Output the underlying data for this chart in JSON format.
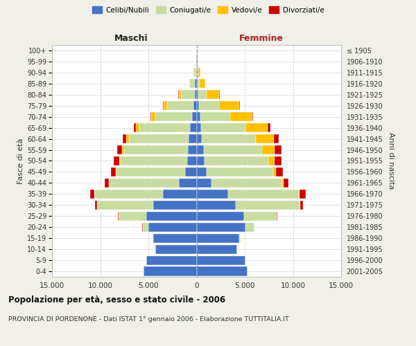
{
  "age_groups": [
    "0-4",
    "5-9",
    "10-14",
    "15-19",
    "20-24",
    "25-29",
    "30-34",
    "35-39",
    "40-44",
    "45-49",
    "50-54",
    "55-59",
    "60-64",
    "65-69",
    "70-74",
    "75-79",
    "80-84",
    "85-89",
    "90-94",
    "95-99",
    "100+"
  ],
  "birth_years": [
    "2001-2005",
    "1996-2000",
    "1991-1995",
    "1986-1990",
    "1981-1985",
    "1976-1980",
    "1971-1975",
    "1966-1970",
    "1961-1965",
    "1956-1960",
    "1951-1955",
    "1946-1950",
    "1941-1945",
    "1936-1940",
    "1931-1935",
    "1926-1930",
    "1921-1925",
    "1916-1920",
    "1911-1915",
    "1906-1910",
    "≤ 1905"
  ],
  "maschi": {
    "celibi": [
      5500,
      5200,
      4300,
      4500,
      5000,
      5200,
      4500,
      3500,
      1800,
      1200,
      1000,
      900,
      800,
      700,
      500,
      350,
      200,
      150,
      60,
      30,
      10
    ],
    "coniugati": [
      0,
      0,
      5,
      80,
      600,
      2900,
      5800,
      7100,
      7300,
      7100,
      6900,
      6600,
      6200,
      5200,
      3800,
      2700,
      1400,
      500,
      200,
      60,
      15
    ],
    "vedovi": [
      0,
      0,
      0,
      0,
      5,
      8,
      12,
      25,
      35,
      60,
      120,
      220,
      320,
      420,
      380,
      350,
      250,
      120,
      50,
      20,
      5
    ],
    "divorziati": [
      0,
      0,
      0,
      5,
      20,
      60,
      200,
      420,
      420,
      530,
      550,
      550,
      350,
      220,
      120,
      70,
      40,
      20,
      10,
      5,
      2
    ]
  },
  "femmine": {
    "nubili": [
      5300,
      5100,
      4200,
      4400,
      5100,
      4900,
      4100,
      3300,
      1550,
      1050,
      820,
      720,
      520,
      470,
      360,
      260,
      160,
      90,
      50,
      20,
      5
    ],
    "coniugate": [
      0,
      0,
      15,
      130,
      900,
      3400,
      6600,
      7300,
      7300,
      6900,
      6600,
      6100,
      5600,
      4600,
      3100,
      2100,
      900,
      260,
      100,
      30,
      5
    ],
    "vedove": [
      0,
      0,
      0,
      5,
      12,
      25,
      55,
      110,
      160,
      320,
      650,
      1300,
      1900,
      2300,
      2300,
      2100,
      1300,
      550,
      220,
      70,
      10
    ],
    "divorziate": [
      0,
      0,
      0,
      5,
      25,
      90,
      320,
      620,
      520,
      720,
      720,
      720,
      520,
      320,
      110,
      60,
      35,
      20,
      10,
      5,
      2
    ]
  },
  "colors": {
    "celibi": "#4472c4",
    "coniugati": "#c8dba0",
    "vedovi": "#ffc000",
    "divorziati": "#cc0000"
  },
  "xlim": 15000,
  "title": "Popolazione per età, sesso e stato civile - 2006",
  "subtitle": "PROVINCIA DI PORDENONE - Dati ISTAT 1° gennaio 2006 - Elaborazione TUTTITALIA.IT",
  "ylabel_left": "Fasce di età",
  "ylabel_right": "Anni di nascita",
  "xlabel_left": "Maschi",
  "xlabel_right": "Femmine",
  "bg_color": "#f0efe8",
  "plot_bg": "#ffffff",
  "legend_labels": [
    "Celibi/Nubili",
    "Coniugati/e",
    "Vedovi/e",
    "Divorziati/e"
  ]
}
